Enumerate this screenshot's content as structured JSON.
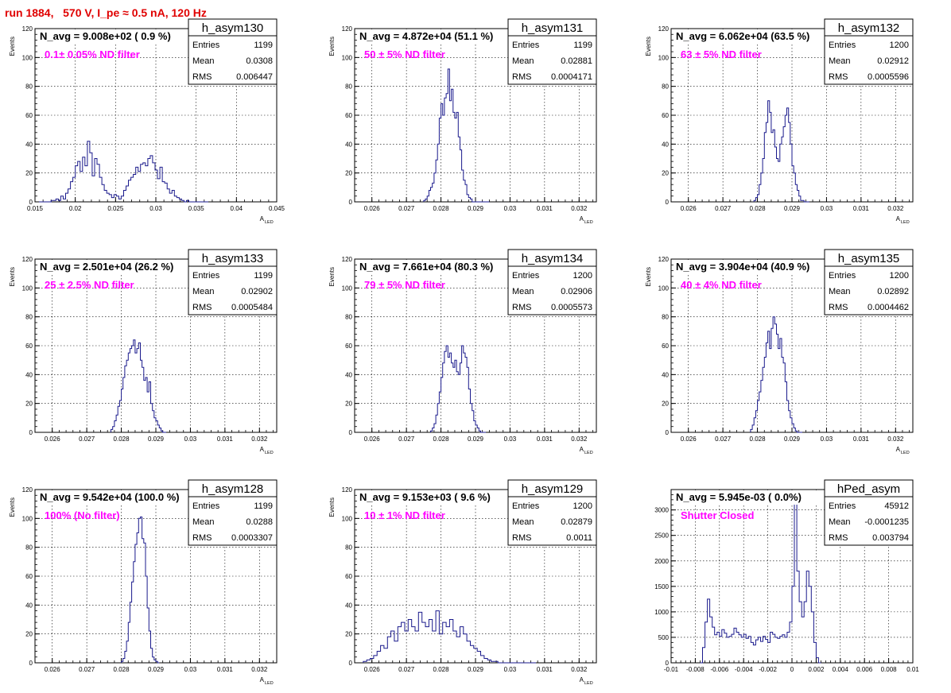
{
  "header": {
    "run_title": "run 1884,   570 V, I_pe ≈ 0.5 nA, 120 Hz",
    "color": "#e00000"
  },
  "style": {
    "hist_color": "#1a1a8c",
    "annotation_color": "#ff00ff",
    "title_color": "#000000"
  },
  "chart_data": [
    {
      "type": "histogram",
      "name": "h_asym130",
      "title": "N_avg = 9.008e+02 ( 0.9 %)",
      "annotation": "0.1± 0.05% ND filter",
      "stats": [
        {
          "label": "Entries",
          "value": "1199"
        },
        {
          "label": "Mean",
          "value": "0.0308"
        },
        {
          "label": "RMS",
          "value": "0.006447"
        }
      ],
      "xlabel": "A",
      "xlabel_sub": "LED",
      "ylabel": "Events",
      "xlim": [
        0.015,
        0.045
      ],
      "ylim": [
        0,
        120
      ],
      "x_ticks": [
        "0.015",
        "0.02",
        "0.025",
        "0.03",
        "0.035",
        "0.04",
        "0.045"
      ],
      "y_ticks": [
        "0",
        "20",
        "40",
        "60",
        "80",
        "100",
        "120"
      ],
      "grid": true,
      "bin_edges_start": 0.0155,
      "bin_width": 0.0003,
      "values": [
        0,
        0,
        0,
        0,
        0,
        1,
        1,
        2,
        1,
        4,
        2,
        6,
        9,
        14,
        17,
        25,
        28,
        21,
        31,
        25,
        42,
        34,
        18,
        30,
        26,
        17,
        12,
        8,
        6,
        5,
        3,
        5,
        4,
        2,
        4,
        8,
        11,
        15,
        17,
        19,
        24,
        21,
        26,
        27,
        25,
        30,
        32,
        27,
        22,
        16,
        24,
        14,
        13,
        9,
        6,
        8,
        4,
        3,
        2,
        1,
        0,
        1,
        0,
        0,
        0,
        0,
        0,
        0,
        0,
        0
      ]
    },
    {
      "type": "histogram",
      "name": "h_asym131",
      "title": "N_avg = 4.872e+04 (51.1 %)",
      "annotation": "50 ± 5% ND filter",
      "stats": [
        {
          "label": "Entries",
          "value": "1199"
        },
        {
          "label": "Mean",
          "value": "0.02881"
        },
        {
          "label": "RMS",
          "value": "0.0004171"
        }
      ],
      "xlabel": "A",
      "xlabel_sub": "LED",
      "ylabel": "Events",
      "xlim": [
        0.0255,
        0.0325
      ],
      "ylim": [
        0,
        120
      ],
      "x_ticks": [
        "0.026",
        "0.027",
        "0.028",
        "0.029",
        "0.03",
        "0.031",
        "0.032"
      ],
      "y_ticks": [
        "0",
        "20",
        "40",
        "60",
        "80",
        "100",
        "120"
      ],
      "grid": true,
      "bin_edges_start": 0.0275,
      "bin_width": 5e-05,
      "values": [
        1,
        2,
        4,
        8,
        10,
        13,
        20,
        29,
        40,
        58,
        68,
        60,
        72,
        75,
        92,
        70,
        78,
        62,
        58,
        62,
        45,
        36,
        22,
        15,
        12,
        5,
        3,
        2,
        0,
        0,
        0,
        0,
        0,
        0,
        0,
        0,
        0,
        0
      ]
    },
    {
      "type": "histogram",
      "name": "h_asym132",
      "title": "N_avg = 6.062e+04 (63.5 %)",
      "annotation": "63 ± 5% ND filter",
      "stats": [
        {
          "label": "Entries",
          "value": "1200"
        },
        {
          "label": "Mean",
          "value": "0.02912"
        },
        {
          "label": "RMS",
          "value": "0.0005596"
        }
      ],
      "xlabel": "A",
      "xlabel_sub": "LED",
      "ylabel": "Events",
      "xlim": [
        0.0255,
        0.0325
      ],
      "ylim": [
        0,
        120
      ],
      "x_ticks": [
        "0.026",
        "0.027",
        "0.028",
        "0.029",
        "0.03",
        "0.031",
        "0.032"
      ],
      "y_ticks": [
        "0",
        "20",
        "40",
        "60",
        "80",
        "100",
        "120"
      ],
      "grid": true,
      "bin_edges_start": 0.0279,
      "bin_width": 5e-05,
      "values": [
        1,
        3,
        5,
        12,
        20,
        30,
        48,
        55,
        70,
        62,
        48,
        50,
        38,
        30,
        28,
        40,
        45,
        52,
        60,
        65,
        55,
        40,
        25,
        20,
        12,
        8,
        4,
        1,
        1,
        0,
        0,
        0
      ]
    },
    {
      "type": "histogram",
      "name": "h_asym133",
      "title": "N_avg = 2.501e+04 (26.2 %)",
      "annotation": "25 ± 2.5% ND filter",
      "stats": [
        {
          "label": "Entries",
          "value": "1199"
        },
        {
          "label": "Mean",
          "value": "0.02902"
        },
        {
          "label": "RMS",
          "value": "0.0005484"
        }
      ],
      "xlabel": "A",
      "xlabel_sub": "LED",
      "ylabel": "Events",
      "xlim": [
        0.0255,
        0.0325
      ],
      "ylim": [
        0,
        120
      ],
      "x_ticks": [
        "0.026",
        "0.027",
        "0.028",
        "0.029",
        "0.03",
        "0.031",
        "0.032"
      ],
      "y_ticks": [
        "0",
        "20",
        "40",
        "60",
        "80",
        "100",
        "120"
      ],
      "grid": true,
      "bin_edges_start": 0.0277,
      "bin_width": 5e-05,
      "values": [
        2,
        4,
        8,
        12,
        18,
        22,
        30,
        38,
        46,
        50,
        55,
        58,
        60,
        64,
        55,
        58,
        62,
        50,
        45,
        36,
        38,
        28,
        35,
        20,
        15,
        10,
        8,
        5,
        3,
        1,
        0,
        0
      ]
    },
    {
      "type": "histogram",
      "name": "h_asym134",
      "title": "N_avg = 7.661e+04 (80.3 %)",
      "annotation": "79 ± 5% ND filter",
      "stats": [
        {
          "label": "Entries",
          "value": "1200"
        },
        {
          "label": "Mean",
          "value": "0.02906"
        },
        {
          "label": "RMS",
          "value": "0.0005573"
        }
      ],
      "xlabel": "A",
      "xlabel_sub": "LED",
      "ylabel": "Events",
      "xlim": [
        0.0255,
        0.0325
      ],
      "ylim": [
        0,
        120
      ],
      "x_ticks": [
        "0.026",
        "0.027",
        "0.028",
        "0.029",
        "0.03",
        "0.031",
        "0.032"
      ],
      "y_ticks": [
        "0",
        "20",
        "40",
        "60",
        "80",
        "100",
        "120"
      ],
      "grid": true,
      "bin_edges_start": 0.0277,
      "bin_width": 5e-05,
      "values": [
        1,
        3,
        6,
        12,
        20,
        28,
        38,
        48,
        56,
        60,
        52,
        55,
        48,
        45,
        50,
        42,
        40,
        48,
        60,
        55,
        52,
        45,
        30,
        20,
        15,
        8,
        5,
        3,
        1,
        0,
        0,
        0
      ]
    },
    {
      "type": "histogram",
      "name": "h_asym135",
      "title": "N_avg = 3.904e+04 (40.9 %)",
      "annotation": "40 ± 4% ND filter",
      "stats": [
        {
          "label": "Entries",
          "value": "1200"
        },
        {
          "label": "Mean",
          "value": "0.02892"
        },
        {
          "label": "RMS",
          "value": "0.0004462"
        }
      ],
      "xlabel": "A",
      "xlabel_sub": "LED",
      "ylabel": "Events",
      "xlim": [
        0.0255,
        0.0325
      ],
      "ylim": [
        0,
        120
      ],
      "x_ticks": [
        "0.026",
        "0.027",
        "0.028",
        "0.029",
        "0.03",
        "0.031",
        "0.032"
      ],
      "y_ticks": [
        "0",
        "20",
        "40",
        "60",
        "80",
        "100",
        "120"
      ],
      "grid": true,
      "bin_edges_start": 0.0278,
      "bin_width": 5e-05,
      "values": [
        2,
        5,
        10,
        15,
        22,
        28,
        36,
        45,
        52,
        62,
        70,
        58,
        72,
        80,
        75,
        68,
        58,
        65,
        52,
        48,
        35,
        22,
        15,
        10,
        6,
        3,
        1,
        0,
        0,
        0
      ]
    },
    {
      "type": "histogram",
      "name": "h_asym128",
      "title": "N_avg = 9.542e+04 (100.0 %)",
      "annotation": "100% (No filter)",
      "stats": [
        {
          "label": "Entries",
          "value": "1199"
        },
        {
          "label": "Mean",
          "value": "0.0288"
        },
        {
          "label": "RMS",
          "value": "0.0003307"
        }
      ],
      "xlabel": "A",
      "xlabel_sub": "LED",
      "ylabel": "Events",
      "xlim": [
        0.0255,
        0.0325
      ],
      "ylim": [
        0,
        120
      ],
      "x_ticks": [
        "0.026",
        "0.027",
        "0.028",
        "0.029",
        "0.03",
        "0.031",
        "0.032"
      ],
      "y_ticks": [
        "0",
        "20",
        "40",
        "60",
        "80",
        "100",
        "120"
      ],
      "grid": true,
      "bin_edges_start": 0.028,
      "bin_width": 5e-05,
      "values": [
        1,
        3,
        8,
        15,
        28,
        42,
        56,
        70,
        82,
        90,
        100,
        101,
        86,
        83,
        60,
        38,
        22,
        10,
        4,
        2,
        1,
        0
      ]
    },
    {
      "type": "histogram",
      "name": "h_asym129",
      "title": "N_avg = 9.153e+03 ( 9.6 %)",
      "annotation": "10 ± 1% ND filter",
      "stats": [
        {
          "label": "Entries",
          "value": "1200"
        },
        {
          "label": "Mean",
          "value": "0.02879"
        },
        {
          "label": "RMS",
          "value": "0.0011"
        }
      ],
      "xlabel": "A",
      "xlabel_sub": "LED",
      "ylabel": "Events",
      "xlim": [
        0.0255,
        0.0325
      ],
      "ylim": [
        0,
        120
      ],
      "x_ticks": [
        "0.026",
        "0.027",
        "0.028",
        "0.029",
        "0.03",
        "0.031",
        "0.032"
      ],
      "y_ticks": [
        "0",
        "20",
        "40",
        "60",
        "80",
        "100",
        "120"
      ],
      "grid": true,
      "bin_edges_start": 0.02575,
      "bin_width": 0.0001,
      "values": [
        1,
        2,
        3,
        5,
        8,
        12,
        10,
        18,
        22,
        15,
        25,
        28,
        22,
        30,
        25,
        22,
        35,
        28,
        25,
        30,
        22,
        36,
        20,
        28,
        25,
        30,
        22,
        18,
        25,
        20,
        15,
        12,
        10,
        8,
        5,
        3,
        2,
        1,
        1,
        0,
        0,
        0,
        0,
        0,
        0,
        0,
        0,
        0,
        0,
        0
      ]
    },
    {
      "type": "histogram",
      "name": "hPed_asym",
      "title": "N_avg = 5.945e-03 ( 0.0%)",
      "annotation": "Shutter Closed",
      "stats": [
        {
          "label": "Entries",
          "value": "45912"
        },
        {
          "label": "Mean",
          "value": "-0.0001235"
        },
        {
          "label": "RMS",
          "value": "0.003794"
        }
      ],
      "xlabel": "",
      "xlabel_sub": "",
      "ylabel": "",
      "xlim": [
        -0.01,
        0.01
      ],
      "ylim": [
        0,
        3400
      ],
      "x_ticks": [
        "-0.01",
        "-0.008",
        "-0.006",
        "-0.004",
        "-0.002",
        "0",
        "0.002",
        "0.004",
        "0.006",
        "0.008",
        "0.01"
      ],
      "y_ticks": [
        "0",
        "500",
        "1000",
        "1500",
        "2000",
        "2500",
        "3000"
      ],
      "grid": true,
      "bin_edges_start": -0.0076,
      "bin_width": 0.0002,
      "values": [
        0,
        300,
        800,
        1250,
        900,
        700,
        550,
        600,
        520,
        650,
        580,
        500,
        520,
        560,
        680,
        600,
        550,
        500,
        560,
        480,
        520,
        400,
        350,
        450,
        500,
        420,
        520,
        460,
        400,
        600,
        560,
        500,
        480,
        520,
        550,
        500,
        600,
        800,
        1500,
        3250,
        1800,
        1200,
        900,
        1200,
        1800,
        1500,
        1000,
        400,
        100,
        0
      ]
    }
  ]
}
